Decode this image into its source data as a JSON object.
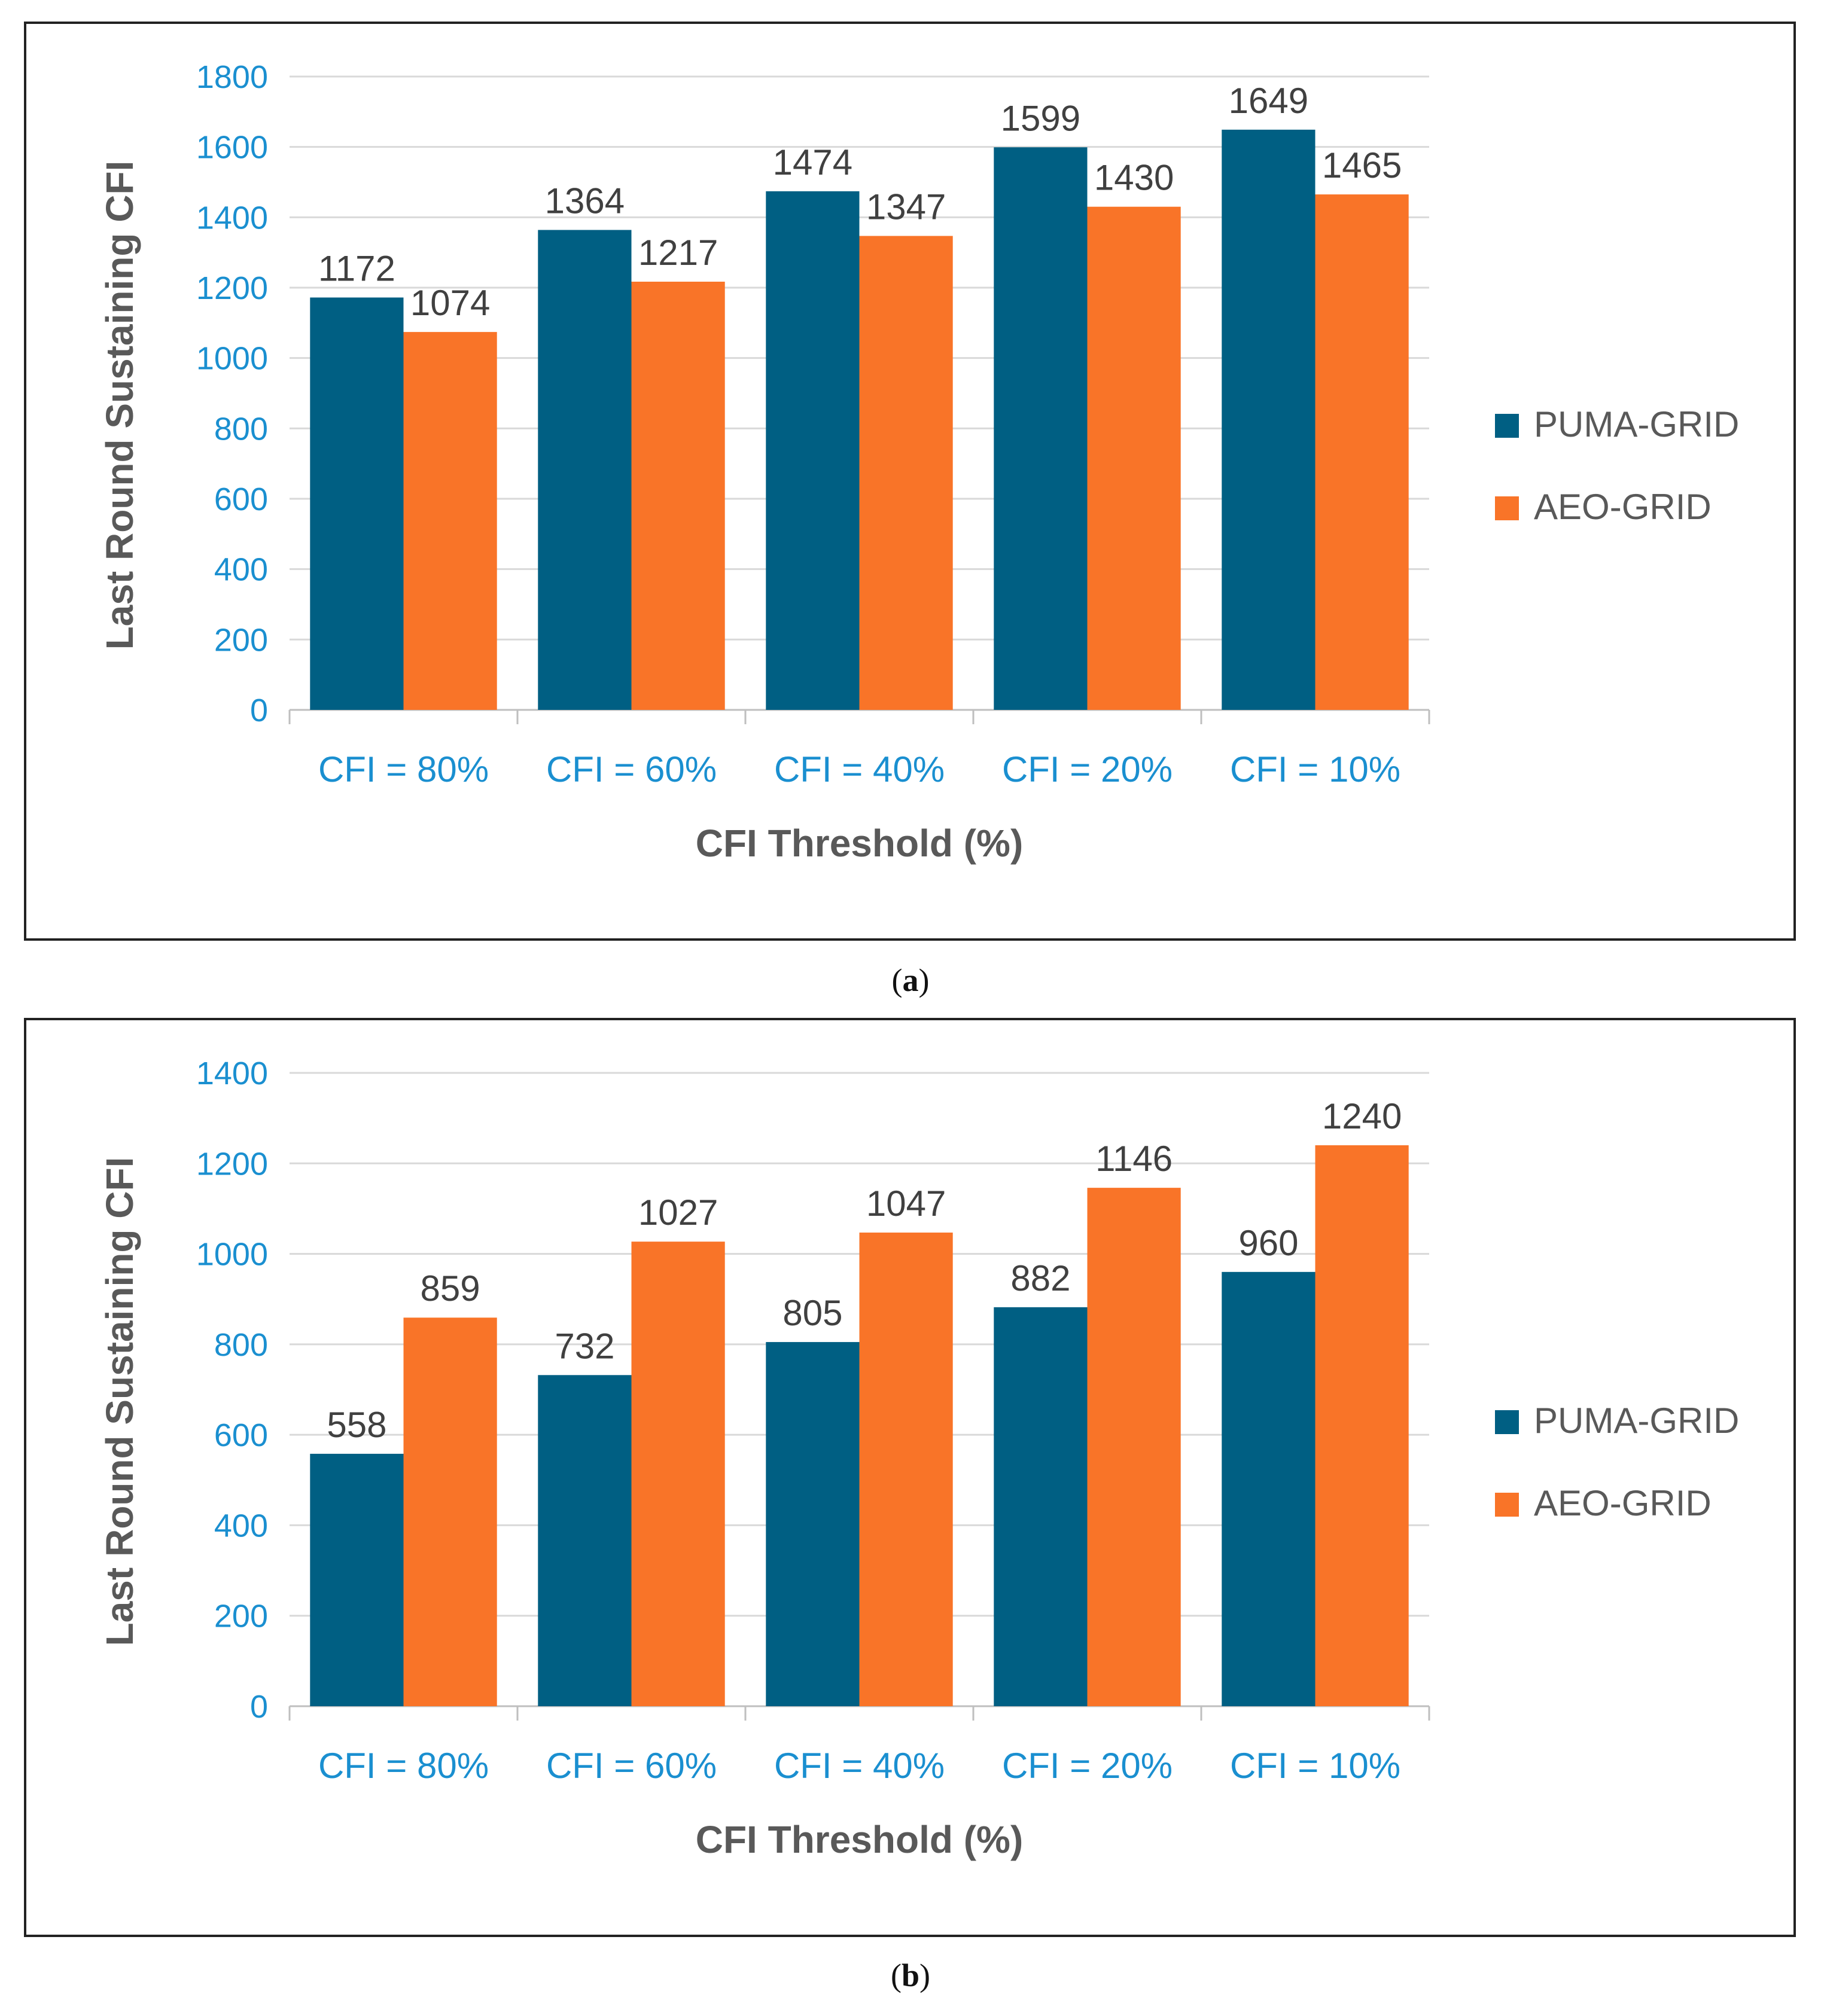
{
  "figure": {
    "caption_a": "a",
    "caption_b": "b"
  },
  "colors": {
    "series_1": "#005f83",
    "series_2": "#f97428",
    "gridline": "#d9d9d9",
    "tick_text": "#1a8fd0"
  },
  "chart_data": [
    {
      "id": "a",
      "type": "bar",
      "title": "",
      "xlabel": "CFI Threshold (%)",
      "ylabel": "Last Round Sustaining CFI",
      "ylim": [
        0,
        1800
      ],
      "yticks": [
        0,
        200,
        400,
        600,
        800,
        1000,
        1200,
        1400,
        1600,
        1800
      ],
      "grid": true,
      "legend_position": "right",
      "categories": [
        "CFI = 80%",
        "CFI = 60%",
        "CFI = 40%",
        "CFI = 20%",
        "CFI = 10%"
      ],
      "series": [
        {
          "name": "PUMA-GRID",
          "color": "#005f83",
          "values": [
            1172,
            1364,
            1474,
            1599,
            1649
          ]
        },
        {
          "name": "AEO-GRID",
          "color": "#f97428",
          "values": [
            1074,
            1217,
            1347,
            1430,
            1465
          ]
        }
      ]
    },
    {
      "id": "b",
      "type": "bar",
      "title": "",
      "xlabel": "CFI Threshold (%)",
      "ylabel": "Last Round Sustaining CFI",
      "ylim": [
        0,
        1400
      ],
      "yticks": [
        0,
        200,
        400,
        600,
        800,
        1000,
        1200,
        1400
      ],
      "grid": true,
      "legend_position": "right",
      "categories": [
        "CFI = 80%",
        "CFI = 60%",
        "CFI = 40%",
        "CFI = 20%",
        "CFI = 10%"
      ],
      "series": [
        {
          "name": "PUMA-GRID",
          "color": "#005f83",
          "values": [
            558,
            732,
            805,
            882,
            960
          ]
        },
        {
          "name": "AEO-GRID",
          "color": "#f97428",
          "values": [
            859,
            1027,
            1047,
            1146,
            1240
          ]
        }
      ]
    }
  ]
}
